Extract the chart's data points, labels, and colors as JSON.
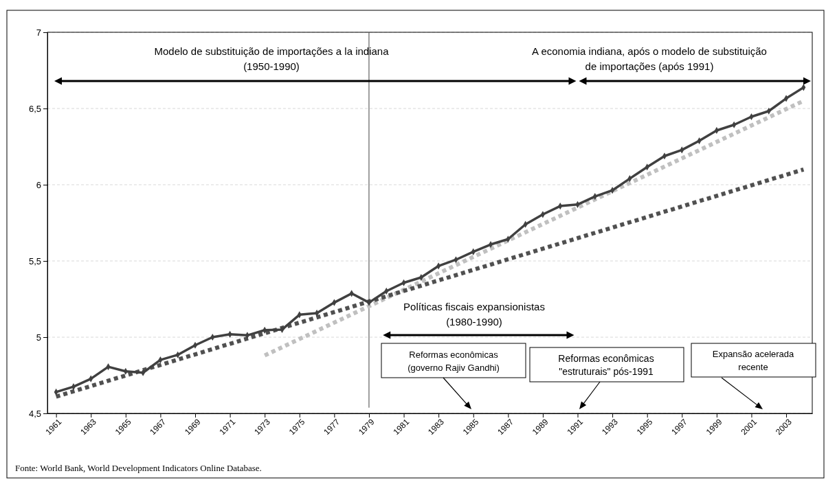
{
  "chart_data": {
    "type": "line",
    "x": [
      1961,
      1962,
      1963,
      1964,
      1965,
      1966,
      1967,
      1968,
      1969,
      1970,
      1971,
      1972,
      1973,
      1974,
      1975,
      1976,
      1977,
      1978,
      1979,
      1980,
      1981,
      1982,
      1983,
      1984,
      1985,
      1986,
      1987,
      1988,
      1989,
      1990,
      1991,
      1992,
      1993,
      1994,
      1995,
      1996,
      1997,
      1998,
      1999,
      2000,
      2001,
      2002,
      2003,
      2004
    ],
    "xlim": [
      1960.5,
      2004.5
    ],
    "xticks": [
      1961,
      1963,
      1965,
      1967,
      1969,
      1971,
      1973,
      1975,
      1977,
      1979,
      1981,
      1983,
      1985,
      1987,
      1989,
      1991,
      1993,
      1995,
      1997,
      1999,
      2001,
      2003
    ],
    "ylim": [
      4.5,
      7
    ],
    "yticks": [
      {
        "value": 4.5,
        "label": "4,5"
      },
      5,
      {
        "value": 5.5,
        "label": "5,5"
      },
      6,
      {
        "value": 6.5,
        "label": "6,5"
      },
      7
    ],
    "grid": "y",
    "marker": "diamond",
    "series": [
      {
        "color": "#404040",
        "values": [
          4.64,
          4.675,
          4.727,
          4.806,
          4.776,
          4.767,
          4.851,
          4.884,
          4.947,
          5.0,
          5.019,
          5.012,
          5.046,
          5.05,
          5.147,
          5.158,
          5.227,
          5.287,
          5.227,
          5.302,
          5.357,
          5.392,
          5.467,
          5.508,
          5.56,
          5.608,
          5.643,
          5.74,
          5.805,
          5.86,
          5.87,
          5.923,
          5.963,
          6.04,
          6.116,
          6.188,
          6.228,
          6.288,
          6.356,
          6.393,
          6.446,
          6.483,
          6.566,
          6.638
        ]
      },
      {
        "type": "line",
        "color": "#505050",
        "line_style": "dotted",
        "marker": "none",
        "x": [
          1961,
          2004
        ],
        "values": [
          4.61,
          6.1
        ]
      },
      {
        "type": "line",
        "color": "#c0c0c0",
        "line_style": "dotted",
        "marker": "none",
        "x": [
          1973,
          2004
        ],
        "values": [
          4.88,
          6.55
        ]
      }
    ],
    "ref_lines": [
      {
        "axis": "x",
        "value": 1979,
        "color": "#404040"
      }
    ],
    "annotations": [
      "Modelo de substituição de importações a la indiana\n(1950-1990)",
      "A economia indiana, após o modelo de substituição\nde importações (após 1991)",
      "Políticas fiscais expansionistas\n(1980-1990)",
      "Reformas econômicas\n(governo Rajiv Gandhi)",
      "Reformas econômicas\n\"estruturais\" pós-1991",
      "Expansão acelerada\nrecente",
      "Fonte: World Bank, World Development Indicators Online Database."
    ]
  }
}
